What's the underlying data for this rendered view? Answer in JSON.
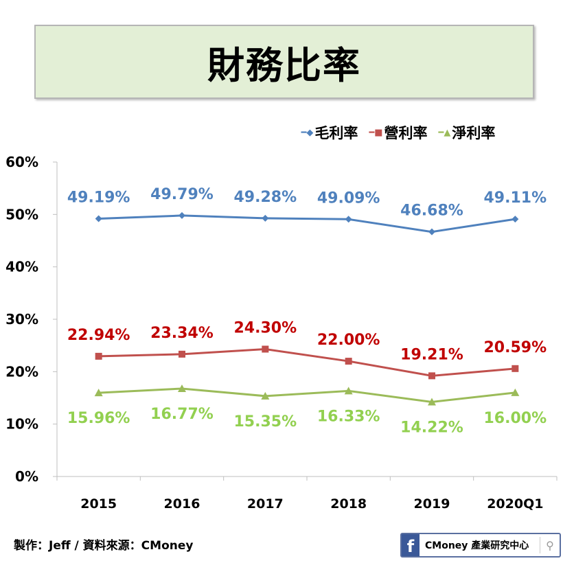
{
  "title": "財務比率",
  "footer": {
    "credit": "製作：Jeff / 資料來源：CMoney",
    "badge_text": "CMoney 產業研究中心",
    "badge_icon": "facebook-icon",
    "search_icon": "search-icon"
  },
  "chart_data": {
    "type": "line",
    "title": "",
    "categories": [
      "2015",
      "2016",
      "2017",
      "2018",
      "2019",
      "2020Q1"
    ],
    "ylim": [
      0,
      60
    ],
    "yticks": [
      "0%",
      "10%",
      "20%",
      "30%",
      "40%",
      "50%",
      "60%"
    ],
    "legend_position": "top",
    "grid": false,
    "series": [
      {
        "name": "毛利率",
        "color": "#4f81bd",
        "label_color": "#4f81bd",
        "marker": "diamond",
        "values": [
          49.19,
          49.79,
          49.28,
          49.09,
          46.68,
          49.11
        ],
        "labels": [
          "49.19%",
          "49.79%",
          "49.28%",
          "49.09%",
          "46.68%",
          "49.11%"
        ],
        "label_pos": "above"
      },
      {
        "name": "營利率",
        "color": "#c0504d",
        "label_color": "#c00000",
        "marker": "square",
        "values": [
          22.94,
          23.34,
          24.3,
          22.0,
          19.21,
          20.59
        ],
        "labels": [
          "22.94%",
          "23.34%",
          "24.30%",
          "22.00%",
          "19.21%",
          "20.59%"
        ],
        "label_pos": "above"
      },
      {
        "name": "淨利率",
        "color": "#9bbb59",
        "label_color": "#92d050",
        "marker": "triangle",
        "values": [
          15.96,
          16.77,
          15.35,
          16.33,
          14.22,
          16.0
        ],
        "labels": [
          "15.96%",
          "16.77%",
          "15.35%",
          "16.33%",
          "14.22%",
          "16.00%"
        ],
        "label_pos": "below"
      }
    ]
  }
}
